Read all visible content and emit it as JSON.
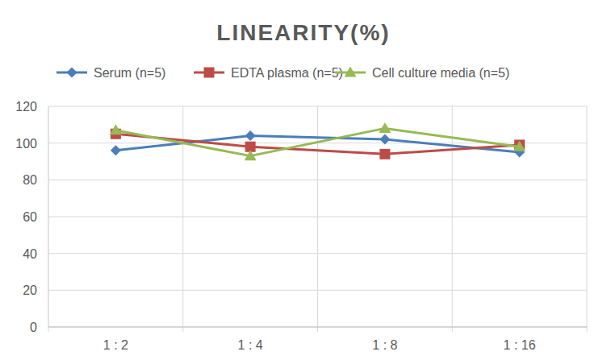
{
  "chart_data": {
    "type": "line",
    "title": "LINEARITY(%)",
    "categories": [
      "1:2",
      "1:4",
      "1:8",
      "1:16"
    ],
    "series": [
      {
        "name": "Serum (n=5)",
        "color": "#4a7ebb",
        "marker": "diamond",
        "values": [
          96,
          104,
          102,
          95
        ]
      },
      {
        "name": "EDTA plasma (n=5)",
        "color": "#be4b48",
        "marker": "square",
        "values": [
          105,
          98,
          94,
          99
        ]
      },
      {
        "name": "Cell culture media (n=5)",
        "color": "#98b954",
        "marker": "triangle",
        "values": [
          107,
          93,
          108,
          98
        ]
      }
    ],
    "ylim": [
      0,
      120
    ],
    "yticks": [
      0,
      20,
      40,
      60,
      80,
      100,
      120
    ],
    "grid": true,
    "legend": "top"
  }
}
